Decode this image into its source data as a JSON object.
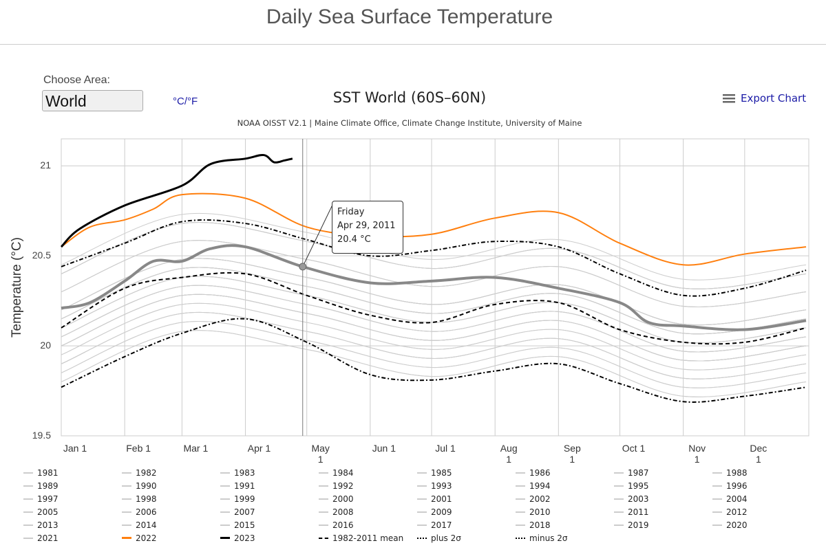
{
  "page": {
    "title": "Daily Sea Surface Temperature"
  },
  "controls": {
    "area_label": "Choose Area:",
    "area_value": "World",
    "units_toggle": "°C/°F",
    "export_label": "Export Chart",
    "export_icon": "hamburger-menu-icon"
  },
  "tooltip": {
    "day": "Friday",
    "date": "Apr 29, 2011",
    "value": "20.4 °C"
  },
  "chart_data": {
    "type": "line",
    "title": "SST World (60S–60N)",
    "subtitle": "NOAA OISST V2.1 | Maine Climate Office, Climate Change Institute, University of Maine",
    "ylabel": "Temperature (°C)",
    "xlabel": "",
    "ylim": [
      19.5,
      21.15
    ],
    "yticks": [
      "21",
      "20.5",
      "20",
      "19.5"
    ],
    "xticks": [
      "Jan 1",
      "Feb 1",
      "Mar 1",
      "Apr 1",
      "May 1",
      "Jun 1",
      "Jul 1",
      "Aug 1",
      "Sep 1",
      "Oct 1",
      "Nov 1",
      "Dec 1"
    ],
    "grid": true,
    "legend_placement": "bottom",
    "colors": {
      "other_years": "#cccccc",
      "y2022": "#ff7f0e",
      "y2023": "#000000",
      "highlight": "#888888",
      "stats": "#000000"
    },
    "years_x": [
      "01-01",
      "03-01",
      "05-01",
      "07-01",
      "09-01",
      "11-01",
      "12-31"
    ],
    "years": [
      {
        "name": "1981",
        "values": [
          19.9,
          20.18,
          20.08,
          19.93,
          20.04,
          19.82,
          19.9
        ]
      },
      {
        "name": "1982",
        "values": [
          19.85,
          20.13,
          20.03,
          19.88,
          19.99,
          19.77,
          19.85
        ]
      },
      {
        "name": "1983",
        "values": [
          20.05,
          20.33,
          20.23,
          20.08,
          20.19,
          19.97,
          20.05
        ]
      },
      {
        "name": "1984",
        "values": [
          19.8,
          20.08,
          19.98,
          19.83,
          19.94,
          19.72,
          19.8
        ]
      },
      {
        "name": "1985",
        "values": [
          19.8,
          20.08,
          19.98,
          19.83,
          19.94,
          19.72,
          19.8
        ]
      },
      {
        "name": "1986",
        "values": [
          19.9,
          20.18,
          20.08,
          19.93,
          20.04,
          19.82,
          19.9
        ]
      },
      {
        "name": "1987",
        "values": [
          20.1,
          20.38,
          20.28,
          20.13,
          20.24,
          20.02,
          20.1
        ]
      },
      {
        "name": "1988",
        "values": [
          20.0,
          20.28,
          20.18,
          20.03,
          20.14,
          19.92,
          20.0
        ]
      },
      {
        "name": "1989",
        "values": [
          19.85,
          20.13,
          20.03,
          19.88,
          19.99,
          19.77,
          19.85
        ]
      },
      {
        "name": "1990",
        "values": [
          20.05,
          20.33,
          20.23,
          20.08,
          20.19,
          19.97,
          20.05
        ]
      },
      {
        "name": "1991",
        "values": [
          20.0,
          20.28,
          20.18,
          20.03,
          20.14,
          19.92,
          20.0
        ]
      },
      {
        "name": "1992",
        "values": [
          19.9,
          20.18,
          20.08,
          19.93,
          20.04,
          19.82,
          19.9
        ]
      },
      {
        "name": "1993",
        "values": [
          19.95,
          20.23,
          20.13,
          19.98,
          20.09,
          19.87,
          19.95
        ]
      },
      {
        "name": "1994",
        "values": [
          20.0,
          20.28,
          20.18,
          20.03,
          20.14,
          19.92,
          20.0
        ]
      },
      {
        "name": "1995",
        "values": [
          20.05,
          20.33,
          20.23,
          20.08,
          20.19,
          19.97,
          20.05
        ]
      },
      {
        "name": "1996",
        "values": [
          19.95,
          20.23,
          20.13,
          19.98,
          20.09,
          19.87,
          19.95
        ]
      },
      {
        "name": "1997",
        "values": [
          20.15,
          20.43,
          20.33,
          20.18,
          20.29,
          20.07,
          20.15
        ]
      },
      {
        "name": "1998",
        "values": [
          20.2,
          20.48,
          20.38,
          20.23,
          20.34,
          20.12,
          20.2
        ]
      },
      {
        "name": "1999",
        "values": [
          20.0,
          20.28,
          20.18,
          20.03,
          20.14,
          19.92,
          20.0
        ]
      },
      {
        "name": "2000",
        "values": [
          20.0,
          20.28,
          20.18,
          20.03,
          20.14,
          19.92,
          20.0
        ]
      },
      {
        "name": "2001",
        "values": [
          20.1,
          20.38,
          20.28,
          20.13,
          20.24,
          20.02,
          20.1
        ]
      },
      {
        "name": "2002",
        "values": [
          20.15,
          20.43,
          20.33,
          20.18,
          20.29,
          20.07,
          20.15
        ]
      },
      {
        "name": "2003",
        "values": [
          20.15,
          20.43,
          20.33,
          20.18,
          20.29,
          20.07,
          20.15
        ]
      },
      {
        "name": "2004",
        "values": [
          20.1,
          20.38,
          20.28,
          20.13,
          20.24,
          20.02,
          20.1
        ]
      },
      {
        "name": "2005",
        "values": [
          20.15,
          20.43,
          20.33,
          20.18,
          20.29,
          20.07,
          20.15
        ]
      },
      {
        "name": "2006",
        "values": [
          20.15,
          20.43,
          20.33,
          20.18,
          20.29,
          20.07,
          20.15
        ]
      },
      {
        "name": "2007",
        "values": [
          20.1,
          20.38,
          20.28,
          20.13,
          20.24,
          20.02,
          20.1
        ]
      },
      {
        "name": "2008",
        "values": [
          20.05,
          20.33,
          20.23,
          20.08,
          20.19,
          19.97,
          20.05
        ]
      },
      {
        "name": "2009",
        "values": [
          20.2,
          20.48,
          20.38,
          20.23,
          20.34,
          20.12,
          20.2
        ]
      },
      {
        "name": "2010",
        "values": [
          20.2,
          20.48,
          20.38,
          20.23,
          20.34,
          20.12,
          20.2
        ]
      },
      {
        "name": "2012",
        "values": [
          20.2,
          20.48,
          20.38,
          20.23,
          20.34,
          20.12,
          20.2
        ]
      },
      {
        "name": "2013",
        "values": [
          20.2,
          20.48,
          20.38,
          20.23,
          20.34,
          20.12,
          20.2
        ]
      },
      {
        "name": "2014",
        "values": [
          20.3,
          20.58,
          20.48,
          20.33,
          20.44,
          20.22,
          20.3
        ]
      },
      {
        "name": "2015",
        "values": [
          20.4,
          20.68,
          20.58,
          20.43,
          20.54,
          20.32,
          20.4
        ]
      },
      {
        "name": "2016",
        "values": [
          20.45,
          20.73,
          20.63,
          20.48,
          20.59,
          20.37,
          20.45
        ]
      },
      {
        "name": "2017",
        "values": [
          20.4,
          20.68,
          20.58,
          20.43,
          20.54,
          20.32,
          20.4
        ]
      },
      {
        "name": "2018",
        "values": [
          20.3,
          20.58,
          20.48,
          20.33,
          20.44,
          20.22,
          20.3
        ]
      },
      {
        "name": "2019",
        "values": [
          20.4,
          20.68,
          20.58,
          20.43,
          20.54,
          20.32,
          20.4
        ]
      },
      {
        "name": "2020",
        "values": [
          20.4,
          20.68,
          20.58,
          20.43,
          20.54,
          20.32,
          20.4
        ]
      },
      {
        "name": "2021",
        "values": [
          20.3,
          20.58,
          20.48,
          20.33,
          20.44,
          20.22,
          20.3
        ]
      }
    ],
    "series": [
      {
        "name": "1982-2011 mean",
        "style": "dashed",
        "x": [
          "01-01",
          "02-01",
          "03-01",
          "04-01",
          "05-01",
          "06-01",
          "07-01",
          "08-01",
          "09-01",
          "10-01",
          "11-01",
          "12-01",
          "12-31"
        ],
        "values": [
          20.1,
          20.32,
          20.38,
          20.4,
          20.28,
          20.17,
          20.13,
          20.23,
          20.24,
          20.09,
          20.02,
          20.02,
          20.1
        ]
      },
      {
        "name": "plus 2σ",
        "style": "dashdot",
        "x": [
          "01-01",
          "02-01",
          "03-01",
          "04-01",
          "05-01",
          "06-01",
          "07-01",
          "08-01",
          "09-01",
          "10-01",
          "11-01",
          "12-01",
          "12-31"
        ],
        "values": [
          20.44,
          20.57,
          20.69,
          20.68,
          20.59,
          20.5,
          20.53,
          20.58,
          20.55,
          20.4,
          20.28,
          20.32,
          20.42
        ]
      },
      {
        "name": "minus 2σ",
        "style": "dashdot",
        "x": [
          "01-01",
          "02-01",
          "03-01",
          "04-01",
          "05-01",
          "06-01",
          "07-01",
          "08-01",
          "09-01",
          "10-01",
          "11-01",
          "12-01",
          "12-31"
        ],
        "values": [
          19.77,
          19.94,
          20.07,
          20.15,
          20.02,
          19.84,
          19.81,
          19.86,
          19.9,
          19.79,
          19.69,
          19.72,
          19.77
        ]
      },
      {
        "name": "2011",
        "style": "highlight",
        "x": [
          "01-01",
          "01-15",
          "02-01",
          "02-15",
          "03-01",
          "03-15",
          "04-01",
          "04-29",
          "06-01",
          "07-01",
          "08-01",
          "09-01",
          "10-01",
          "10-15",
          "11-01",
          "12-01",
          "12-31"
        ],
        "values": [
          20.21,
          20.24,
          20.36,
          20.47,
          20.47,
          20.54,
          20.55,
          20.44,
          20.35,
          20.36,
          20.38,
          20.32,
          20.24,
          20.13,
          20.11,
          20.09,
          20.14
        ]
      },
      {
        "name": "2022",
        "style": "orange",
        "x": [
          "01-01",
          "01-15",
          "02-01",
          "02-15",
          "03-01",
          "04-01",
          "05-01",
          "06-01",
          "07-01",
          "08-01",
          "09-01",
          "10-01",
          "11-01",
          "12-01",
          "12-31"
        ],
        "values": [
          20.55,
          20.66,
          20.7,
          20.76,
          20.84,
          20.82,
          20.66,
          20.61,
          20.62,
          20.71,
          20.74,
          20.57,
          20.45,
          20.51,
          20.55
        ]
      },
      {
        "name": "2023",
        "style": "black",
        "x": [
          "01-01",
          "01-10",
          "02-01",
          "03-01",
          "03-15",
          "04-01",
          "04-10",
          "04-15",
          "04-20",
          "04-24"
        ],
        "values": [
          20.55,
          20.65,
          20.78,
          20.89,
          21.01,
          21.04,
          21.06,
          21.02,
          21.03,
          21.04
        ]
      }
    ],
    "legend": [
      "1981",
      "1982",
      "1983",
      "1984",
      "1985",
      "1986",
      "1987",
      "1988",
      "1989",
      "1990",
      "1991",
      "1992",
      "1993",
      "1994",
      "1995",
      "1996",
      "1997",
      "1998",
      "1999",
      "2000",
      "2001",
      "2002",
      "2003",
      "2004",
      "2005",
      "2006",
      "2007",
      "2008",
      "2009",
      "2010",
      "2011",
      "2012",
      "2013",
      "2014",
      "2015",
      "2016",
      "2017",
      "2018",
      "2019",
      "2020",
      "2021",
      "2022",
      "2023",
      "1982-2011 mean",
      "plus 2σ",
      "minus 2σ"
    ]
  }
}
